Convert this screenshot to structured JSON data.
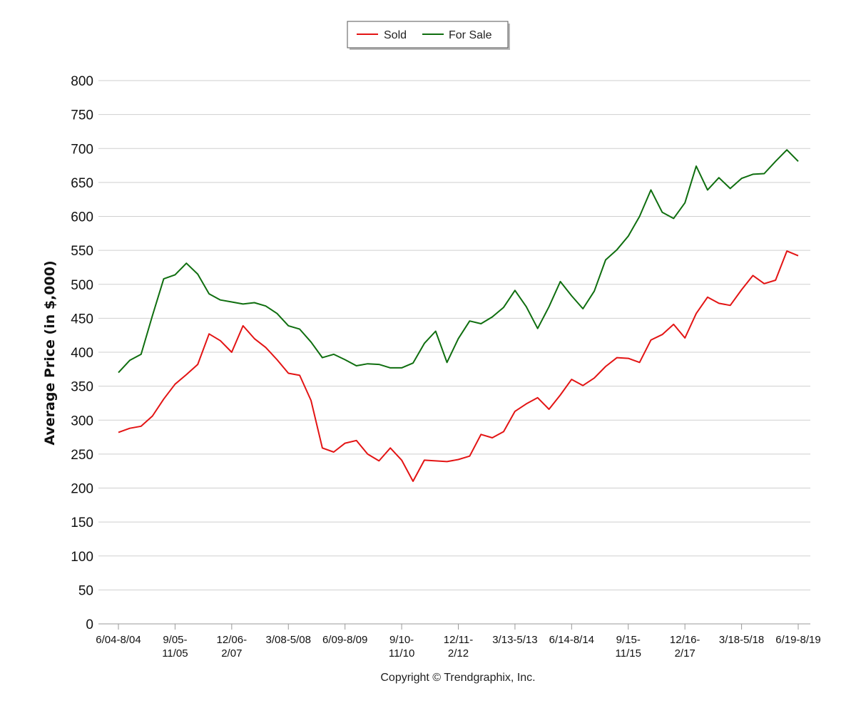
{
  "chart_data": {
    "type": "line",
    "title": "",
    "xlabel": "",
    "ylabel": "Average Price (in $,000)",
    "ylim": [
      0,
      800
    ],
    "yticks": [
      0,
      50,
      100,
      150,
      200,
      250,
      300,
      350,
      400,
      450,
      500,
      550,
      600,
      650,
      700,
      750,
      800
    ],
    "grid": true,
    "legend": "top-center",
    "x_labels": [
      {
        "index": 0,
        "lines": [
          "6/04-8/04"
        ]
      },
      {
        "index": 5,
        "lines": [
          "9/05-",
          "11/05"
        ]
      },
      {
        "index": 10,
        "lines": [
          "12/06-",
          "2/07"
        ]
      },
      {
        "index": 15,
        "lines": [
          "3/08-5/08"
        ]
      },
      {
        "index": 20,
        "lines": [
          "6/09-8/09"
        ]
      },
      {
        "index": 25,
        "lines": [
          "9/10-",
          "11/10"
        ]
      },
      {
        "index": 30,
        "lines": [
          "12/11-",
          "2/12"
        ]
      },
      {
        "index": 35,
        "lines": [
          "3/13-5/13"
        ]
      },
      {
        "index": 40,
        "lines": [
          "6/14-8/14"
        ]
      },
      {
        "index": 45,
        "lines": [
          "9/15-",
          "11/15"
        ]
      },
      {
        "index": 50,
        "lines": [
          "12/16-",
          "2/17"
        ]
      },
      {
        "index": 55,
        "lines": [
          "3/18-5/18"
        ]
      },
      {
        "index": 60,
        "lines": [
          "6/19-8/19"
        ]
      }
    ],
    "series": [
      {
        "name": "Sold",
        "color": "#e31414",
        "values": [
          282,
          288,
          291,
          306,
          331,
          353,
          367,
          382,
          427,
          417,
          400,
          439,
          420,
          407,
          389,
          369,
          366,
          329,
          259,
          253,
          266,
          270,
          250,
          240,
          259,
          241,
          210,
          241,
          240,
          239,
          242,
          247,
          279,
          274,
          283,
          313,
          324,
          333,
          316,
          337,
          360,
          351,
          362,
          379,
          392,
          391,
          385,
          418,
          426,
          441,
          421,
          457,
          481,
          472,
          469,
          492,
          513,
          501,
          506,
          549,
          542
        ]
      },
      {
        "name": "For Sale",
        "color": "#0f6e0f",
        "values": [
          370,
          388,
          397,
          454,
          508,
          514,
          531,
          515,
          486,
          477,
          474,
          471,
          473,
          468,
          457,
          439,
          434,
          415,
          392,
          397,
          389,
          380,
          383,
          382,
          377,
          377,
          384,
          413,
          431,
          385,
          420,
          446,
          442,
          452,
          466,
          491,
          467,
          435,
          467,
          504,
          483,
          464,
          490,
          536,
          551,
          571,
          600,
          639,
          606,
          597,
          620,
          674,
          639,
          657,
          641,
          656,
          662,
          663,
          681,
          698,
          681
        ]
      }
    ]
  },
  "copyright": "Copyright © Trendgraphix, Inc."
}
